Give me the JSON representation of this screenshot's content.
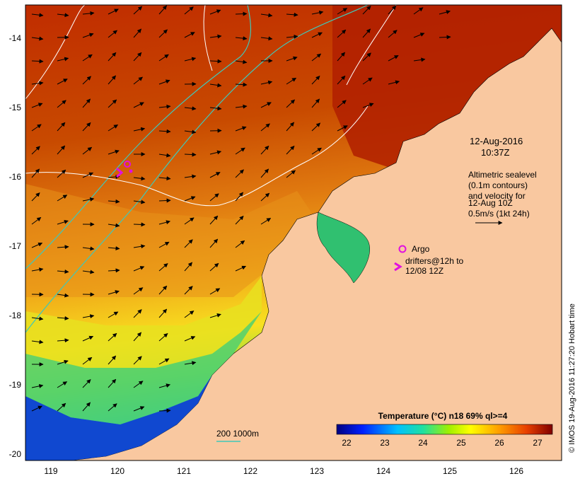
{
  "map": {
    "date_title": "12-Aug-2016",
    "time_title": "10:37Z",
    "x_ticks": [
      "119",
      "120",
      "121",
      "122",
      "123",
      "124",
      "125",
      "126"
    ],
    "y_ticks": [
      "-14",
      "-15",
      "-16",
      "-17",
      "-18",
      "-19",
      "-20"
    ],
    "altimetry_note": [
      "Altimetric sealevel",
      "(0.1m contours)",
      "and velocity for",
      "12-Aug 10Z",
      "0.5m/s (1kt 24h)"
    ],
    "argo_label": "Argo",
    "drifters_label": [
      "drifters@12h to",
      "12/08 12Z"
    ],
    "isobath_label": "200  1000m",
    "colorbar": {
      "title": "Temperature (°C) n18 69% ql>=4",
      "ticks": [
        "22",
        "23",
        "24",
        "25",
        "26",
        "27"
      ]
    },
    "credit": "© IMOS 19-Aug-2016 11:27:20 Hobart time",
    "colors": {
      "land": "#f9c8a0",
      "sst_warm": "#b82800",
      "sst_mid": "#e88a10",
      "sst_cool": "#1040c8",
      "marker": "#e010e0",
      "isobath": "#40c8b8"
    }
  }
}
